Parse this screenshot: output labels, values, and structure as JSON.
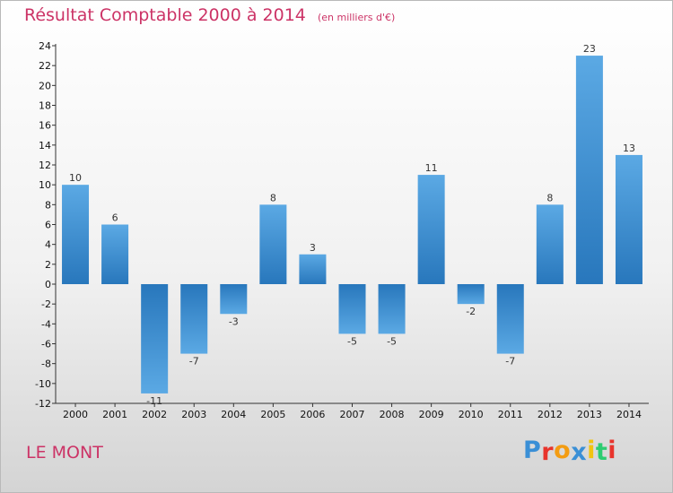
{
  "header": {
    "title": "Résultat Comptable 2000 à 2014",
    "subtitle": "(en milliers d'€)"
  },
  "footer": {
    "commune": "LE MONT",
    "logo_text": "Proxiti"
  },
  "colors": {
    "title": "#cc3366",
    "bar_light": "#5aa9e2",
    "bar_dark": "#2a7bbf",
    "logo_letters": [
      "#3a8fd6",
      "#e8342c",
      "#f39c12",
      "#3a8fd6",
      "#f1c40f",
      "#2ecc71",
      "#e8342c"
    ]
  },
  "chart_data": {
    "type": "bar",
    "title": "Résultat Comptable 2000 à 2014",
    "subtitle": "(en milliers d'€)",
    "categories": [
      "2000",
      "2001",
      "2002",
      "2003",
      "2004",
      "2005",
      "2006",
      "2007",
      "2008",
      "2009",
      "2010",
      "2011",
      "2012",
      "2013",
      "2014"
    ],
    "values": [
      10,
      6,
      -11,
      -7,
      -3,
      8,
      3,
      -5,
      -5,
      11,
      -2,
      -7,
      8,
      23,
      13
    ],
    "ylim": [
      -12,
      24
    ],
    "yticks": [
      24,
      22,
      20,
      18,
      16,
      14,
      12,
      10,
      8,
      6,
      4,
      2,
      0,
      -2,
      -4,
      -6,
      -8,
      -10,
      -12
    ],
    "grid": false,
    "legend": "none"
  }
}
